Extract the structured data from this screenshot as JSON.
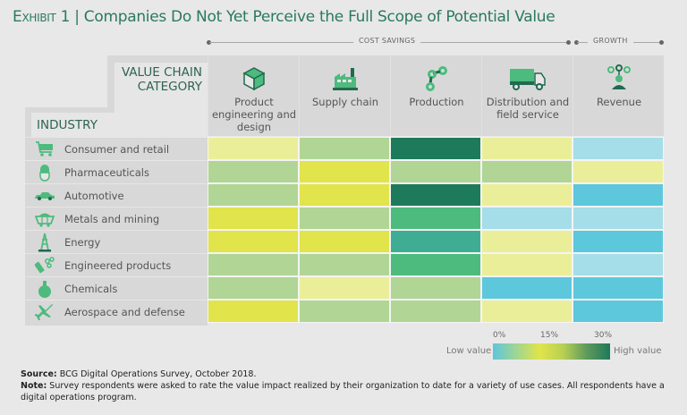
{
  "title": {
    "prefix": "Exhibit 1",
    "separator": " | ",
    "text": "Companies Do Not Yet Perceive the Full Scope of Potential Value"
  },
  "brackets": {
    "cost_savings": "COST SAVINGS",
    "growth": "GROWTH"
  },
  "axis_headers": {
    "columns": "VALUE CHAIN CATEGORY",
    "rows": "INDUSTRY"
  },
  "chart_data": {
    "type": "heatmap",
    "title": "Companies Do Not Yet Perceive the Full Scope of Potential Value",
    "x_group_labels": [
      {
        "label": "COST SAVINGS",
        "columns": [
          "Product engineering and design",
          "Supply chain",
          "Production",
          "Distribution and field service"
        ]
      },
      {
        "label": "GROWTH",
        "columns": [
          "Revenue"
        ]
      }
    ],
    "columns": [
      {
        "label": "Product engineering and design",
        "icon": "cube-icon"
      },
      {
        "label": "Supply chain",
        "icon": "factory-icon"
      },
      {
        "label": "Production",
        "icon": "robot-arm-icon"
      },
      {
        "label": "Distribution and field service",
        "icon": "truck-icon"
      },
      {
        "label": "Revenue",
        "icon": "person-network-icon"
      }
    ],
    "rows": [
      {
        "label": "Consumer and retail",
        "icon": "shopping-cart-icon"
      },
      {
        "label": "Pharmaceuticals",
        "icon": "pill-icon"
      },
      {
        "label": "Automotive",
        "icon": "car-icon"
      },
      {
        "label": "Metals and mining",
        "icon": "mine-cart-icon"
      },
      {
        "label": "Energy",
        "icon": "oil-rig-icon"
      },
      {
        "label": "Engineered products",
        "icon": "bolt-nut-icon"
      },
      {
        "label": "Chemicals",
        "icon": "flask-icon"
      },
      {
        "label": "Aerospace and defense",
        "icon": "airplane-icon"
      }
    ],
    "values_pct": [
      [
        12,
        20,
        30,
        12,
        7
      ],
      [
        20,
        15,
        20,
        20,
        12
      ],
      [
        20,
        15,
        30,
        12,
        3
      ],
      [
        15,
        20,
        25,
        7,
        7
      ],
      [
        15,
        15,
        27,
        12,
        3
      ],
      [
        20,
        20,
        25,
        12,
        7
      ],
      [
        20,
        12,
        20,
        3,
        3
      ],
      [
        15,
        20,
        20,
        12,
        3
      ]
    ],
    "color_scale": {
      "min_label": "Low value",
      "max_label": "High value",
      "ticks": [
        "0%",
        "15%",
        "30%"
      ],
      "stops": [
        {
          "value": 0,
          "color": "#5dc7dc"
        },
        {
          "value": 7,
          "color": "#a5dde8"
        },
        {
          "value": 12,
          "color": "#ebee99"
        },
        {
          "value": 15,
          "color": "#e1e44a"
        },
        {
          "value": 20,
          "color": "#b0d595"
        },
        {
          "value": 25,
          "color": "#4dbb7d"
        },
        {
          "value": 27,
          "color": "#3fad93"
        },
        {
          "value": 30,
          "color": "#1d7a5a"
        }
      ]
    }
  },
  "legend": {
    "low": "Low value",
    "high": "High value",
    "ticks": [
      "0%",
      "15%",
      "30%"
    ]
  },
  "footnotes": {
    "source_label": "Source:",
    "source_text": " BCG Digital Operations Survey, October 2018.",
    "note_label": "Note:",
    "note_text": " Survey respondents were asked to rate the value impact realized by their organization to date for a variety of use cases. All respondents have a digital operations program."
  }
}
